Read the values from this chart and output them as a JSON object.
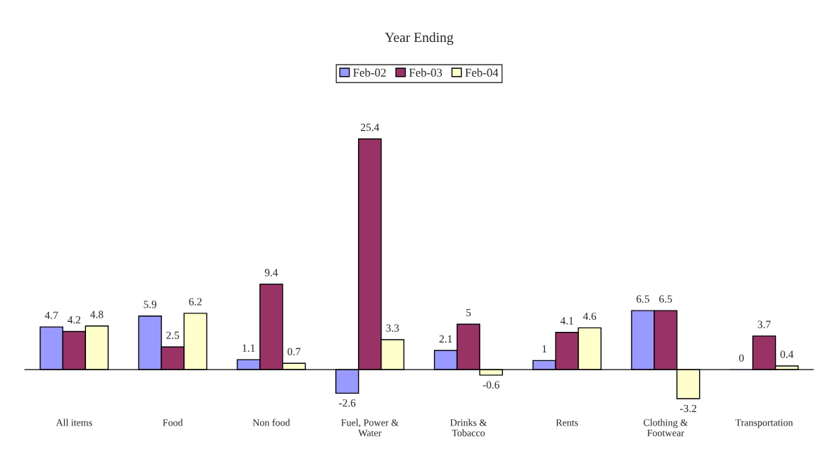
{
  "chart_data": {
    "type": "bar",
    "title": "Year Ending",
    "categories": [
      "All items",
      "Food",
      "Non food",
      "Fuel, Power &\nWater",
      "Drinks &\nTobacco",
      "Rents",
      "Clothing &\nFootwear",
      "Transportation"
    ],
    "series": [
      {
        "name": "Feb-02",
        "color": "#9999ff",
        "values": [
          4.7,
          5.9,
          1.1,
          -2.6,
          2.1,
          1,
          6.5,
          0
        ]
      },
      {
        "name": "Feb-03",
        "color": "#993366",
        "values": [
          4.2,
          2.5,
          9.4,
          25.4,
          5,
          4.1,
          6.5,
          3.7
        ]
      },
      {
        "name": "Feb-04",
        "color": "#ffffcc",
        "values": [
          4.8,
          6.2,
          0.7,
          3.3,
          -0.6,
          4.6,
          -3.2,
          0.4
        ]
      }
    ],
    "data_labels": true,
    "legend": "top",
    "grid": false
  }
}
